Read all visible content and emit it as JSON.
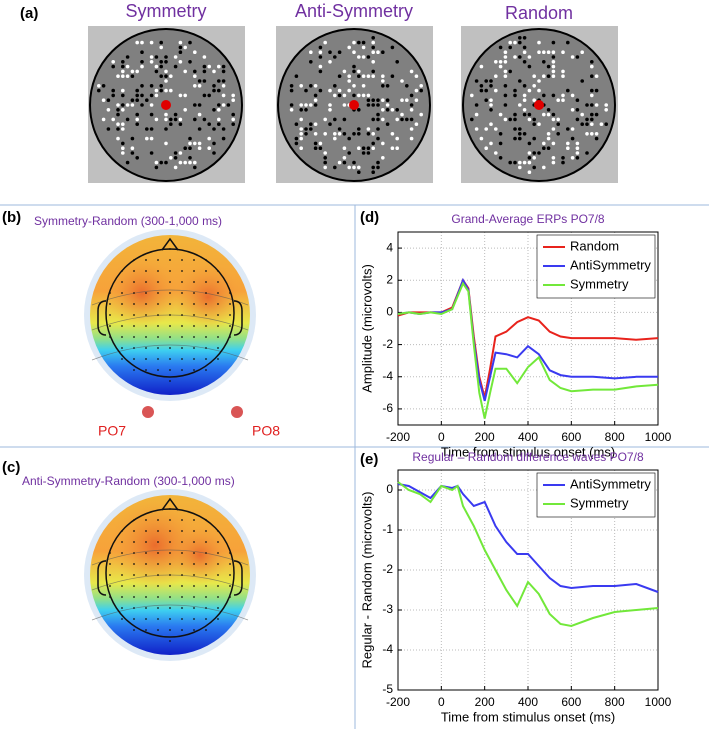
{
  "panel_labels": [
    "(a)",
    "(b)",
    "(c)",
    "(d)",
    "(e)"
  ],
  "stimuli": {
    "titles": [
      "Symmetry",
      "Anti-Symmetry",
      "Random"
    ]
  },
  "topomaps": [
    {
      "title": "Symmetry-Random (300-1,000 ms)",
      "electrodes": [
        "PO7",
        "PO8"
      ]
    },
    {
      "title": "Anti-Symmetry-Random (300-1,000 ms)"
    }
  ],
  "chart_data": [
    {
      "type": "line",
      "title": "Grand-Average ERPs PO7/8",
      "x_label": "Time from stimulus onset (ms)",
      "y_label": "Amplitude (microvolts)",
      "x": [
        -200,
        -150,
        -100,
        -50,
        0,
        50,
        100,
        125,
        150,
        175,
        200,
        225,
        250,
        300,
        350,
        400,
        450,
        500,
        550,
        600,
        700,
        800,
        900,
        1000
      ],
      "series": [
        {
          "name": "Random",
          "color": "#e8231c",
          "values": [
            -0.2,
            0,
            0,
            0,
            0,
            0.3,
            2.0,
            1.5,
            -1.5,
            -4,
            -5.3,
            -3.5,
            -1.5,
            -1.2,
            -0.6,
            -0.3,
            -0.5,
            -1.2,
            -1.5,
            -1.6,
            -1.6,
            -1.6,
            -1.7,
            -1.6
          ]
        },
        {
          "name": "AntiSymmetry",
          "color": "#3a3af0",
          "values": [
            -0.1,
            0,
            -0.1,
            0,
            0,
            0.2,
            2.0,
            1.4,
            -1.8,
            -4.2,
            -5.5,
            -4,
            -2.5,
            -2.6,
            -2.8,
            -2.1,
            -2.6,
            -3.6,
            -3.9,
            -4.0,
            -4.0,
            -4.1,
            -4.0,
            -4.0
          ]
        },
        {
          "name": "Symmetry",
          "color": "#72e83a",
          "values": [
            -0.1,
            0,
            -0.1,
            0,
            -0.1,
            0.2,
            1.8,
            1.3,
            -2,
            -5,
            -6.6,
            -5,
            -3.5,
            -3.5,
            -4.4,
            -3.4,
            -2.8,
            -4.2,
            -4.7,
            -4.9,
            -4.8,
            -4.8,
            -4.6,
            -4.5
          ]
        }
      ],
      "xlim": [
        -200,
        1000
      ],
      "xticks": [
        -200,
        0,
        200,
        400,
        600,
        800,
        1000
      ],
      "ylim": [
        -7,
        5
      ],
      "yticks": [
        -6,
        -4,
        -2,
        0,
        2,
        4
      ],
      "grid": true,
      "legend": "upper right"
    },
    {
      "type": "line",
      "title": "Regular – Random difference waves PO7/8",
      "x_label": "Time from stimulus onset (ms)",
      "y_label": "Regular - Random (microvolts)",
      "x": [
        -200,
        -150,
        -100,
        -50,
        0,
        50,
        75,
        100,
        150,
        200,
        250,
        300,
        350,
        400,
        450,
        500,
        550,
        600,
        700,
        800,
        900,
        1000
      ],
      "series": [
        {
          "name": "AntiSymmetry",
          "color": "#3a3af0",
          "values": [
            0.15,
            0.1,
            -0.05,
            -0.2,
            0.1,
            0.05,
            0.1,
            -0.1,
            -0.4,
            -0.3,
            -0.9,
            -1.3,
            -1.6,
            -1.6,
            -1.9,
            -2.2,
            -2.4,
            -2.45,
            -2.4,
            -2.4,
            -2.35,
            -2.55
          ]
        },
        {
          "name": "Symmetry",
          "color": "#72e83a",
          "values": [
            0.2,
            0,
            -0.1,
            -0.3,
            0.1,
            0,
            0.1,
            -0.4,
            -0.9,
            -1.5,
            -2.0,
            -2.5,
            -2.9,
            -2.3,
            -2.6,
            -3.1,
            -3.35,
            -3.4,
            -3.2,
            -3.05,
            -3.0,
            -2.95
          ]
        }
      ],
      "xlim": [
        -200,
        1000
      ],
      "xticks": [
        -200,
        0,
        200,
        400,
        600,
        800,
        1000
      ],
      "ylim": [
        -5,
        0.5
      ],
      "yticks": [
        -5,
        -4,
        -3,
        -2,
        -1,
        0
      ],
      "grid": true,
      "legend": "upper right"
    }
  ]
}
